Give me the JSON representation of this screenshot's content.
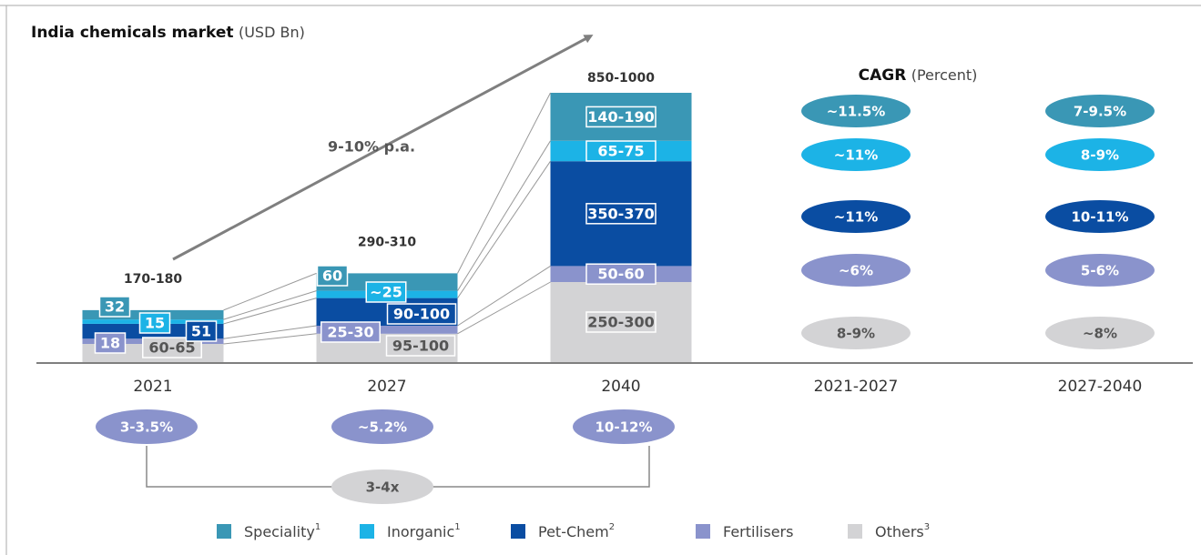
{
  "chart_data": {
    "type": "bar",
    "stacked": true,
    "title": "India chemicals market",
    "unit": "(USD Bn)",
    "categories": [
      "2021",
      "2027",
      "2040"
    ],
    "totals": [
      "170-180",
      "290-310",
      "850-1000"
    ],
    "series": [
      {
        "name": "Others",
        "note": "3",
        "color": "#d3d3d5",
        "values": [
          62.5,
          97.5,
          275
        ],
        "value_labels": [
          "60-65",
          "95-100",
          "250-300"
        ]
      },
      {
        "name": "Fertilisers",
        "note": "",
        "color": "#8a93cc",
        "values": [
          18,
          27.5,
          55
        ],
        "value_labels": [
          "18",
          "25-30",
          "50-60"
        ]
      },
      {
        "name": "Pet-Chem",
        "note": "2",
        "color": "#0a4da2",
        "values": [
          51,
          95,
          360
        ],
        "value_labels": [
          "51",
          "90-100",
          "350-370"
        ]
      },
      {
        "name": "Inorganic",
        "note": "1",
        "color": "#1cb3e6",
        "values": [
          15,
          25,
          70
        ],
        "value_labels": [
          "15",
          "~25",
          "65-75"
        ]
      },
      {
        "name": "Speciality",
        "note": "1",
        "color": "#3a97b5",
        "values": [
          32,
          60,
          165
        ],
        "value_labels": [
          "32",
          "60",
          "140-190"
        ]
      }
    ],
    "trend_label": "9-10% p.a.",
    "growth_labels": [
      "3-3.5%",
      "~5.2%",
      "10-12%"
    ],
    "multiple": "3-4x",
    "cagr": {
      "title": "CAGR",
      "unit": "(Percent)",
      "periods": [
        "2021-2027",
        "2027-2040"
      ],
      "values": [
        [
          "8-9%",
          "~6%",
          "~11%",
          "~11%",
          "~11.5%"
        ],
        [
          "~8%",
          "5-6%",
          "10-11%",
          "8-9%",
          "7-9.5%"
        ]
      ]
    }
  }
}
